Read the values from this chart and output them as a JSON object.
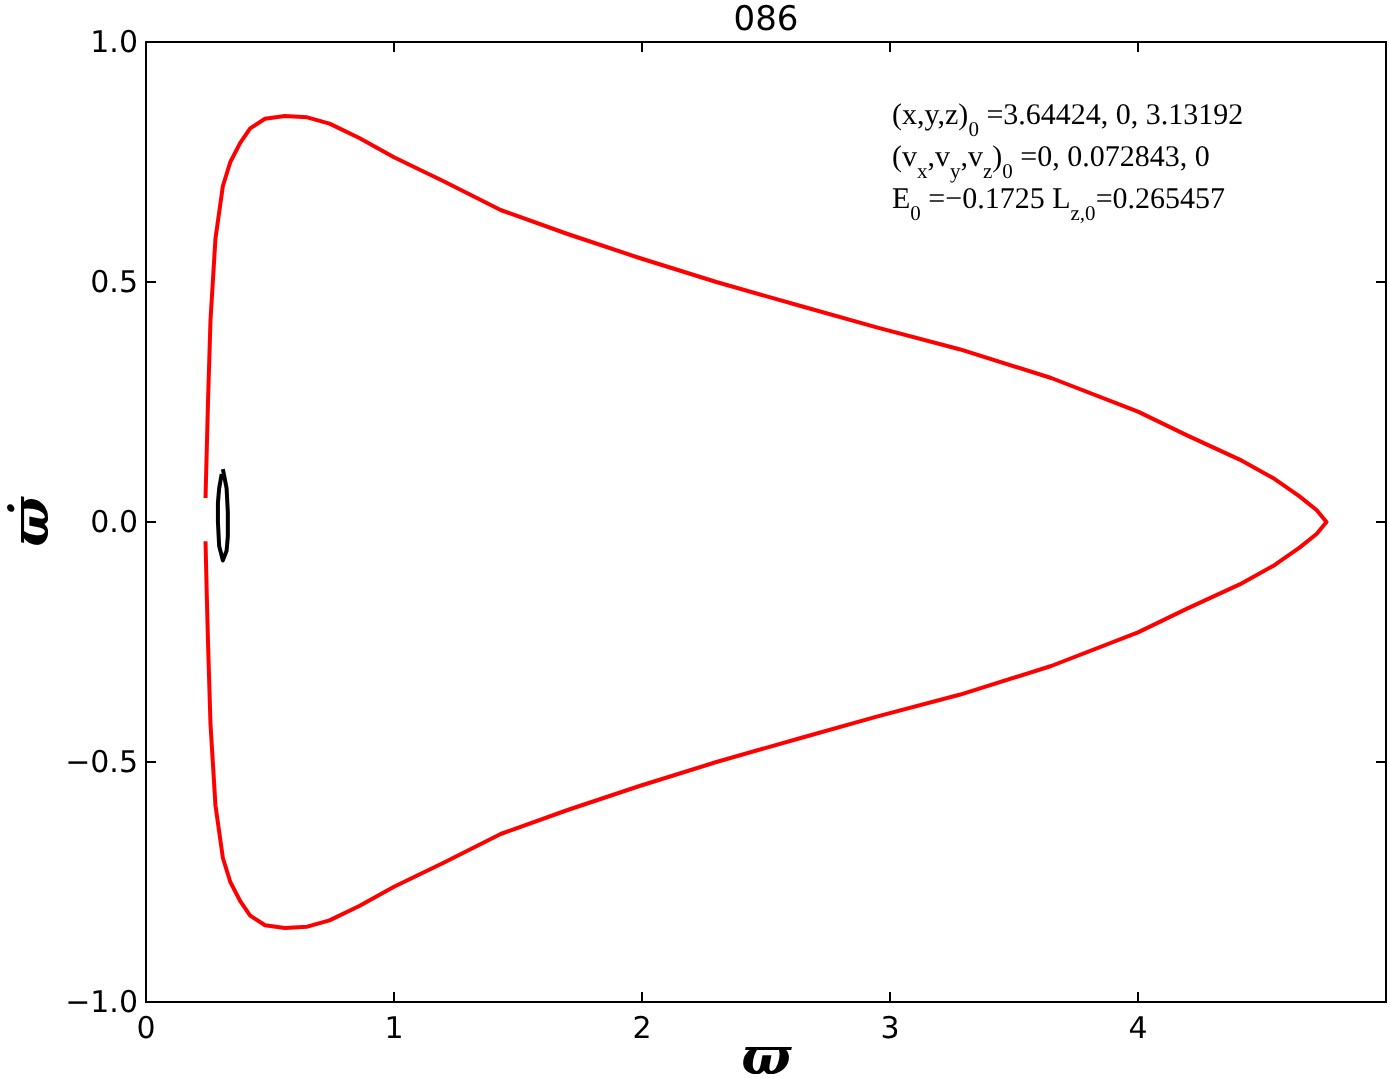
{
  "chart_data": {
    "type": "line",
    "title": "086",
    "xlabel": "ϖ",
    "ylabel": "ϖ̇",
    "xlim": [
      0,
      5
    ],
    "ylim": [
      -1,
      1
    ],
    "xticks": [
      0,
      1,
      2,
      3,
      4
    ],
    "yticks": [
      {
        "value": -1,
        "label": "−1.0"
      },
      {
        "value": -0.5,
        "label": "−0.5"
      },
      {
        "value": 0,
        "label": "0.0"
      },
      {
        "value": 0.5,
        "label": "0.5"
      },
      {
        "value": 1,
        "label": "1.0"
      }
    ],
    "grid": false,
    "marker": "none",
    "line_style": "solid",
    "annotations": [
      "(x,y,z)$_{0}$ =3.64424, 0, 3.13192",
      "(v$_{x}$,v$_{y}$,v$_{z}$)$_{0}$ =0, 0.072843, 0",
      "E$_{0}$ =−0.1725  L$_{z,0}$=0.265457"
    ],
    "series": [
      {
        "color": "#ff0000",
        "x": [
          0.24,
          0.245,
          0.25,
          0.26,
          0.28,
          0.31,
          0.34,
          0.38,
          0.42,
          0.48,
          0.56,
          0.65,
          0.74,
          0.86,
          1.0,
          1.2,
          1.43,
          1.7,
          1.99,
          2.3,
          2.64,
          2.95,
          3.28,
          3.65,
          4.0,
          4.2,
          4.41,
          4.55,
          4.65,
          4.72,
          4.76,
          4.72,
          4.65,
          4.55,
          4.41,
          4.2,
          4.0,
          3.65,
          3.28,
          2.95,
          2.64,
          2.3,
          1.99,
          1.7,
          1.43,
          1.2,
          1.0,
          0.86,
          0.74,
          0.65,
          0.56,
          0.48,
          0.42,
          0.38,
          0.34,
          0.31,
          0.28,
          0.26,
          0.25,
          0.245,
          0.24
        ],
        "values": [
          0.05,
          0.15,
          0.25,
          0.42,
          0.59,
          0.7,
          0.75,
          0.79,
          0.82,
          0.84,
          0.846,
          0.843,
          0.83,
          0.8,
          0.76,
          0.71,
          0.65,
          0.6,
          0.55,
          0.5,
          0.45,
          0.405,
          0.36,
          0.3,
          0.23,
          0.18,
          0.13,
          0.09,
          0.054,
          0.025,
          0,
          -0.025,
          -0.054,
          -0.09,
          -0.13,
          -0.18,
          -0.23,
          -0.3,
          -0.36,
          -0.405,
          -0.45,
          -0.5,
          -0.55,
          -0.6,
          -0.65,
          -0.71,
          -0.76,
          -0.8,
          -0.83,
          -0.843,
          -0.846,
          -0.84,
          -0.82,
          -0.79,
          -0.75,
          -0.7,
          -0.59,
          -0.42,
          -0.25,
          -0.15,
          -0.04
        ]
      },
      {
        "color": "#000000",
        "x": [
          0.31,
          0.325,
          0.33,
          0.33,
          0.325,
          0.31,
          0.295,
          0.29,
          0.29,
          0.295,
          0.305
        ],
        "values": [
          0.11,
          0.07,
          0.02,
          -0.03,
          -0.06,
          -0.08,
          -0.05,
          0,
          0.04,
          0.07,
          0.1
        ]
      }
    ]
  }
}
